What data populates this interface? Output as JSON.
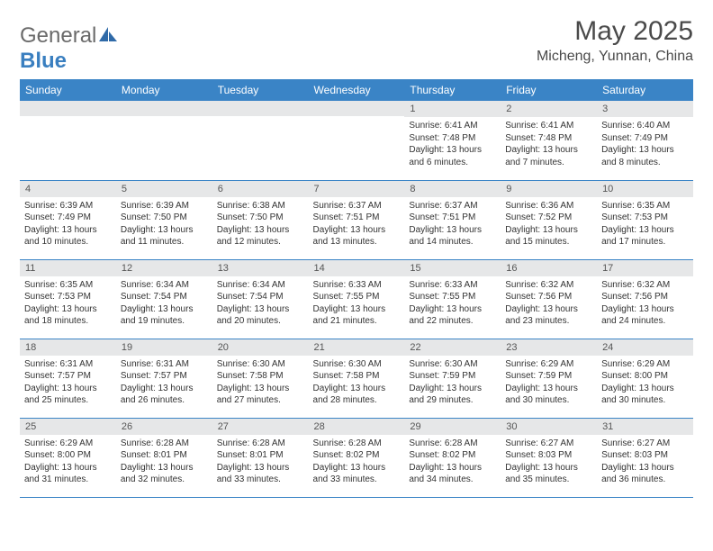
{
  "brand": {
    "word1": "General",
    "word2": "Blue",
    "icon_color": "#2f6aa8"
  },
  "header": {
    "title": "May 2025",
    "subtitle": "Micheng, Yunnan, China"
  },
  "colors": {
    "header_bar": "#3a84c6",
    "row_divider": "#3a84c6",
    "daynum_bg": "#e6e7e8",
    "text": "#333333"
  },
  "fontsizes": {
    "title": 30,
    "subtitle": 16,
    "weekday": 12,
    "daynum": 11,
    "body": 10
  },
  "weekdays": [
    "Sunday",
    "Monday",
    "Tuesday",
    "Wednesday",
    "Thursday",
    "Friday",
    "Saturday"
  ],
  "weeks": [
    [
      {
        "n": "",
        "lines": []
      },
      {
        "n": "",
        "lines": []
      },
      {
        "n": "",
        "lines": []
      },
      {
        "n": "",
        "lines": []
      },
      {
        "n": "1",
        "lines": [
          "Sunrise: 6:41 AM",
          "Sunset: 7:48 PM",
          "Daylight: 13 hours and 6 minutes."
        ]
      },
      {
        "n": "2",
        "lines": [
          "Sunrise: 6:41 AM",
          "Sunset: 7:48 PM",
          "Daylight: 13 hours and 7 minutes."
        ]
      },
      {
        "n": "3",
        "lines": [
          "Sunrise: 6:40 AM",
          "Sunset: 7:49 PM",
          "Daylight: 13 hours and 8 minutes."
        ]
      }
    ],
    [
      {
        "n": "4",
        "lines": [
          "Sunrise: 6:39 AM",
          "Sunset: 7:49 PM",
          "Daylight: 13 hours and 10 minutes."
        ]
      },
      {
        "n": "5",
        "lines": [
          "Sunrise: 6:39 AM",
          "Sunset: 7:50 PM",
          "Daylight: 13 hours and 11 minutes."
        ]
      },
      {
        "n": "6",
        "lines": [
          "Sunrise: 6:38 AM",
          "Sunset: 7:50 PM",
          "Daylight: 13 hours and 12 minutes."
        ]
      },
      {
        "n": "7",
        "lines": [
          "Sunrise: 6:37 AM",
          "Sunset: 7:51 PM",
          "Daylight: 13 hours and 13 minutes."
        ]
      },
      {
        "n": "8",
        "lines": [
          "Sunrise: 6:37 AM",
          "Sunset: 7:51 PM",
          "Daylight: 13 hours and 14 minutes."
        ]
      },
      {
        "n": "9",
        "lines": [
          "Sunrise: 6:36 AM",
          "Sunset: 7:52 PM",
          "Daylight: 13 hours and 15 minutes."
        ]
      },
      {
        "n": "10",
        "lines": [
          "Sunrise: 6:35 AM",
          "Sunset: 7:53 PM",
          "Daylight: 13 hours and 17 minutes."
        ]
      }
    ],
    [
      {
        "n": "11",
        "lines": [
          "Sunrise: 6:35 AM",
          "Sunset: 7:53 PM",
          "Daylight: 13 hours and 18 minutes."
        ]
      },
      {
        "n": "12",
        "lines": [
          "Sunrise: 6:34 AM",
          "Sunset: 7:54 PM",
          "Daylight: 13 hours and 19 minutes."
        ]
      },
      {
        "n": "13",
        "lines": [
          "Sunrise: 6:34 AM",
          "Sunset: 7:54 PM",
          "Daylight: 13 hours and 20 minutes."
        ]
      },
      {
        "n": "14",
        "lines": [
          "Sunrise: 6:33 AM",
          "Sunset: 7:55 PM",
          "Daylight: 13 hours and 21 minutes."
        ]
      },
      {
        "n": "15",
        "lines": [
          "Sunrise: 6:33 AM",
          "Sunset: 7:55 PM",
          "Daylight: 13 hours and 22 minutes."
        ]
      },
      {
        "n": "16",
        "lines": [
          "Sunrise: 6:32 AM",
          "Sunset: 7:56 PM",
          "Daylight: 13 hours and 23 minutes."
        ]
      },
      {
        "n": "17",
        "lines": [
          "Sunrise: 6:32 AM",
          "Sunset: 7:56 PM",
          "Daylight: 13 hours and 24 minutes."
        ]
      }
    ],
    [
      {
        "n": "18",
        "lines": [
          "Sunrise: 6:31 AM",
          "Sunset: 7:57 PM",
          "Daylight: 13 hours and 25 minutes."
        ]
      },
      {
        "n": "19",
        "lines": [
          "Sunrise: 6:31 AM",
          "Sunset: 7:57 PM",
          "Daylight: 13 hours and 26 minutes."
        ]
      },
      {
        "n": "20",
        "lines": [
          "Sunrise: 6:30 AM",
          "Sunset: 7:58 PM",
          "Daylight: 13 hours and 27 minutes."
        ]
      },
      {
        "n": "21",
        "lines": [
          "Sunrise: 6:30 AM",
          "Sunset: 7:58 PM",
          "Daylight: 13 hours and 28 minutes."
        ]
      },
      {
        "n": "22",
        "lines": [
          "Sunrise: 6:30 AM",
          "Sunset: 7:59 PM",
          "Daylight: 13 hours and 29 minutes."
        ]
      },
      {
        "n": "23",
        "lines": [
          "Sunrise: 6:29 AM",
          "Sunset: 7:59 PM",
          "Daylight: 13 hours and 30 minutes."
        ]
      },
      {
        "n": "24",
        "lines": [
          "Sunrise: 6:29 AM",
          "Sunset: 8:00 PM",
          "Daylight: 13 hours and 30 minutes."
        ]
      }
    ],
    [
      {
        "n": "25",
        "lines": [
          "Sunrise: 6:29 AM",
          "Sunset: 8:00 PM",
          "Daylight: 13 hours and 31 minutes."
        ]
      },
      {
        "n": "26",
        "lines": [
          "Sunrise: 6:28 AM",
          "Sunset: 8:01 PM",
          "Daylight: 13 hours and 32 minutes."
        ]
      },
      {
        "n": "27",
        "lines": [
          "Sunrise: 6:28 AM",
          "Sunset: 8:01 PM",
          "Daylight: 13 hours and 33 minutes."
        ]
      },
      {
        "n": "28",
        "lines": [
          "Sunrise: 6:28 AM",
          "Sunset: 8:02 PM",
          "Daylight: 13 hours and 33 minutes."
        ]
      },
      {
        "n": "29",
        "lines": [
          "Sunrise: 6:28 AM",
          "Sunset: 8:02 PM",
          "Daylight: 13 hours and 34 minutes."
        ]
      },
      {
        "n": "30",
        "lines": [
          "Sunrise: 6:27 AM",
          "Sunset: 8:03 PM",
          "Daylight: 13 hours and 35 minutes."
        ]
      },
      {
        "n": "31",
        "lines": [
          "Sunrise: 6:27 AM",
          "Sunset: 8:03 PM",
          "Daylight: 13 hours and 36 minutes."
        ]
      }
    ]
  ]
}
